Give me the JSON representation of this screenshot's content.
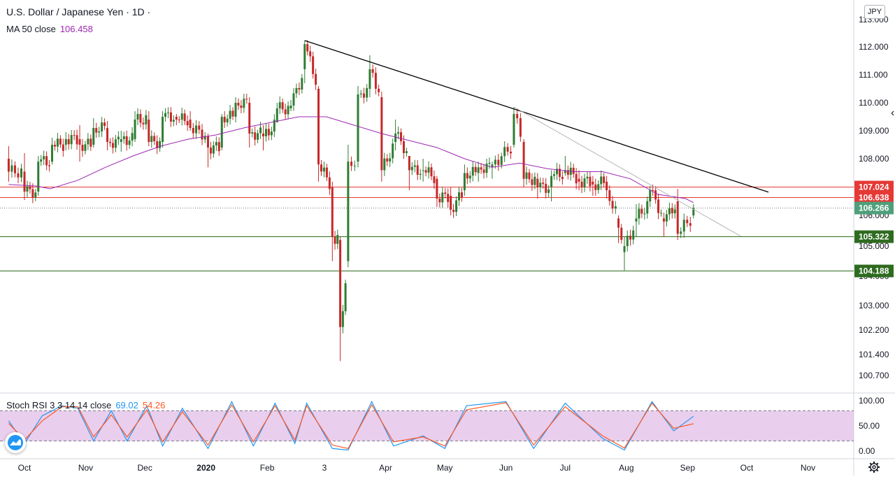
{
  "header": {
    "title": "U.S. Dollar / Japanese Yen · 1D ·",
    "ma_label": "MA 50 close",
    "ma_value": "106.458",
    "currency": "JPY"
  },
  "indicator": {
    "label": "Stoch RSI 3 3 14 14 close",
    "k_value": "69.02",
    "d_value": "54.26"
  },
  "colors": {
    "up": "#2e7d32",
    "down": "#c62828",
    "ma": "#9c27b0",
    "stoch_k": "#2196f3",
    "stoch_d": "#ff5722",
    "stoch_band": "#e1bee7",
    "resistance": "#e53935",
    "support": "#2e6b1f",
    "trendline": "#000000",
    "trendline_minor": "#b5b5b5",
    "last_price_bg": "#4f9f7a"
  },
  "icons": {
    "logo": "tradingview-logo-icon",
    "settings": "gear-icon",
    "scale_handle": "scroll-handle-icon"
  },
  "chart_data": [
    {
      "type": "candlestick",
      "title": "U.S. Dollar / Japanese Yen · 1D ·",
      "x_tick_labels": [
        "Oct",
        "Nov",
        "Dec",
        "2020",
        "Feb",
        "3",
        "Apr",
        "May",
        "Jun",
        "Jul",
        "Aug",
        "Sep",
        "Oct",
        "Nov"
      ],
      "y_tick_labels": [
        "113.000",
        "112.000",
        "111.000",
        "110.000",
        "109.000",
        "108.000",
        "107.000",
        "106.000",
        "105.000",
        "104.000",
        "103.000",
        "102.200",
        "101.400",
        "100.700"
      ],
      "ylim": [
        100.4,
        113.2
      ],
      "grid": false,
      "horizontal_levels": [
        {
          "value": 107.024,
          "label": "107.024",
          "role": "resistance"
        },
        {
          "value": 106.638,
          "label": "106.638",
          "role": "resistance"
        },
        {
          "value": 105.322,
          "label": "105.322",
          "role": "support"
        },
        {
          "value": 104.188,
          "label": "104.188",
          "role": "support"
        }
      ],
      "last_price": {
        "value": 106.266,
        "label": "106.266"
      },
      "trendlines": [
        {
          "from": {
            "date": "2020-02-20",
            "price": 112.23
          },
          "to": {
            "date": "2020-10-12",
            "price": 106.83
          },
          "style": "solid"
        },
        {
          "from": {
            "date": "2020-06-05",
            "price": 109.85
          },
          "to": {
            "date": "2020-09-28",
            "price": 105.32
          },
          "style": "thin"
        }
      ],
      "ma50": {
        "label": "MA 50 close",
        "value": "106.458",
        "points": [
          [
            "2019-09-23",
            107.1
          ],
          [
            "2019-10-07",
            107.05
          ],
          [
            "2019-10-14",
            106.95
          ],
          [
            "2019-10-28",
            107.25
          ],
          [
            "2019-11-11",
            107.7
          ],
          [
            "2019-11-25",
            108.1
          ],
          [
            "2019-12-09",
            108.45
          ],
          [
            "2019-12-23",
            108.7
          ],
          [
            "2020-01-06",
            108.85
          ],
          [
            "2020-01-20",
            109.1
          ],
          [
            "2020-02-03",
            109.3
          ],
          [
            "2020-02-17",
            109.5
          ],
          [
            "2020-03-02",
            109.5
          ],
          [
            "2020-03-16",
            109.2
          ],
          [
            "2020-03-30",
            108.9
          ],
          [
            "2020-04-13",
            108.65
          ],
          [
            "2020-04-27",
            108.4
          ],
          [
            "2020-05-11",
            108.0
          ],
          [
            "2020-05-25",
            107.7
          ],
          [
            "2020-06-08",
            107.85
          ],
          [
            "2020-06-22",
            107.65
          ],
          [
            "2020-07-06",
            107.55
          ],
          [
            "2020-07-20",
            107.55
          ],
          [
            "2020-08-03",
            107.3
          ],
          [
            "2020-08-17",
            106.75
          ],
          [
            "2020-08-31",
            106.6
          ],
          [
            "2020-09-04",
            106.458
          ]
        ]
      },
      "ohlc_monthly_path": [
        [
          "2019-09-23",
          108.0,
          108.45,
          107.2,
          107.55
        ],
        [
          "2019-10-01",
          107.55,
          108.2,
          106.55,
          106.85
        ],
        [
          "2019-10-08",
          106.85,
          108.1,
          106.7,
          107.9
        ],
        [
          "2019-10-15",
          107.9,
          108.75,
          107.8,
          108.5
        ],
        [
          "2019-10-22",
          108.5,
          108.95,
          108.3,
          108.7
        ],
        [
          "2019-10-29",
          108.7,
          109.2,
          107.9,
          108.5
        ],
        [
          "2019-11-05",
          108.5,
          109.45,
          108.4,
          109.1
        ],
        [
          "2019-11-12",
          109.1,
          109.35,
          108.3,
          108.6
        ],
        [
          "2019-11-19",
          108.6,
          109.0,
          108.25,
          108.7
        ],
        [
          "2019-11-26",
          108.7,
          109.7,
          108.6,
          109.4
        ],
        [
          "2019-12-03",
          109.4,
          109.7,
          108.45,
          108.6
        ],
        [
          "2019-12-10",
          108.6,
          109.7,
          108.4,
          109.5
        ],
        [
          "2019-12-17",
          109.5,
          109.6,
          109.2,
          109.4
        ],
        [
          "2019-12-24",
          109.4,
          109.7,
          109.0,
          109.1
        ],
        [
          "2020-01-02",
          108.8,
          108.9,
          107.7,
          108.4
        ],
        [
          "2020-01-09",
          108.4,
          109.6,
          108.3,
          109.5
        ],
        [
          "2020-01-16",
          109.5,
          110.2,
          109.3,
          110.0
        ],
        [
          "2020-01-23",
          110.0,
          110.2,
          108.4,
          108.9
        ],
        [
          "2020-01-30",
          108.9,
          109.2,
          108.3,
          108.8
        ],
        [
          "2020-02-06",
          109.3,
          110.0,
          109.6,
          109.8
        ],
        [
          "2020-02-13",
          109.8,
          110.1,
          109.7,
          109.9
        ],
        [
          "2020-02-20",
          111.2,
          112.23,
          110.7,
          112.1
        ],
        [
          "2020-02-27",
          110.5,
          110.6,
          107.2,
          107.8
        ],
        [
          "2020-03-05",
          107.0,
          107.2,
          104.5,
          105.3
        ],
        [
          "2020-03-09",
          105.2,
          105.3,
          101.18,
          102.3
        ],
        [
          "2020-03-13",
          104.5,
          108.5,
          104.3,
          107.9
        ],
        [
          "2020-03-18",
          107.9,
          110.6,
          107.7,
          110.3
        ],
        [
          "2020-03-24",
          110.5,
          111.7,
          110.2,
          111.2
        ],
        [
          "2020-03-30",
          110.2,
          110.4,
          107.2,
          107.6
        ],
        [
          "2020-04-06",
          108.6,
          109.4,
          108.3,
          108.9
        ],
        [
          "2020-04-13",
          108.1,
          108.1,
          106.9,
          107.6
        ],
        [
          "2020-04-20",
          107.6,
          108.0,
          107.2,
          107.6
        ],
        [
          "2020-04-27",
          107.3,
          107.4,
          106.3,
          106.6
        ],
        [
          "2020-05-04",
          106.7,
          107.0,
          106.0,
          106.2
        ],
        [
          "2020-05-11",
          106.9,
          107.8,
          106.7,
          107.5
        ],
        [
          "2020-05-18",
          107.5,
          107.9,
          107.2,
          107.7
        ],
        [
          "2020-05-25",
          107.7,
          107.9,
          107.3,
          107.8
        ],
        [
          "2020-06-05",
          108.5,
          109.85,
          108.4,
          109.6
        ],
        [
          "2020-06-10",
          108.6,
          108.7,
          107.0,
          107.3
        ],
        [
          "2020-06-17",
          107.3,
          107.5,
          106.6,
          107.0
        ],
        [
          "2020-06-24",
          107.0,
          107.6,
          106.5,
          107.4
        ],
        [
          "2020-07-01",
          107.5,
          108.1,
          107.4,
          107.6
        ],
        [
          "2020-07-08",
          107.3,
          107.6,
          106.9,
          107.2
        ],
        [
          "2020-07-15",
          107.2,
          107.4,
          106.7,
          107.1
        ],
        [
          "2020-07-22",
          107.2,
          107.4,
          106.6,
          106.9
        ],
        [
          "2020-07-28",
          105.9,
          106.0,
          105.1,
          105.6
        ],
        [
          "2020-07-31",
          104.8,
          105.3,
          104.19,
          105.0
        ],
        [
          "2020-08-06",
          105.8,
          106.4,
          105.3,
          105.9
        ],
        [
          "2020-08-13",
          106.5,
          107.05,
          106.3,
          106.9
        ],
        [
          "2020-08-20",
          105.9,
          106.1,
          105.3,
          105.8
        ],
        [
          "2020-08-27",
          106.5,
          106.95,
          105.2,
          105.4
        ],
        [
          "2020-09-04",
          106.0,
          106.4,
          105.9,
          106.266
        ]
      ]
    },
    {
      "type": "line",
      "title": "Stoch RSI 3 3 14 14 close",
      "y_tick_labels": [
        "100.00",
        "50.00",
        "0.00"
      ],
      "ylim": [
        -5,
        104
      ],
      "band": [
        20,
        80
      ],
      "series": [
        {
          "name": "K",
          "value": "69.02",
          "values": [
            [
              "2019-09-23",
              60
            ],
            [
              "2019-10-01",
              15
            ],
            [
              "2019-10-10",
              70
            ],
            [
              "2019-10-20",
              90
            ],
            [
              "2019-10-28",
              85
            ],
            [
              "2019-11-05",
              20
            ],
            [
              "2019-11-14",
              80
            ],
            [
              "2019-11-22",
              20
            ],
            [
              "2019-12-02",
              90
            ],
            [
              "2019-12-10",
              10
            ],
            [
              "2019-12-20",
              85
            ],
            [
              "2020-01-02",
              5
            ],
            [
              "2020-01-14",
              98
            ],
            [
              "2020-01-25",
              10
            ],
            [
              "2020-02-05",
              95
            ],
            [
              "2020-02-15",
              15
            ],
            [
              "2020-02-21",
              95
            ],
            [
              "2020-03-05",
              5
            ],
            [
              "2020-03-13",
              2
            ],
            [
              "2020-03-25",
              98
            ],
            [
              "2020-04-05",
              10
            ],
            [
              "2020-04-20",
              30
            ],
            [
              "2020-05-01",
              5
            ],
            [
              "2020-05-12",
              90
            ],
            [
              "2020-06-01",
              98
            ],
            [
              "2020-06-15",
              5
            ],
            [
              "2020-07-01",
              95
            ],
            [
              "2020-07-20",
              25
            ],
            [
              "2020-07-31",
              2
            ],
            [
              "2020-08-14",
              98
            ],
            [
              "2020-08-25",
              40
            ],
            [
              "2020-09-04",
              69.02
            ]
          ]
        },
        {
          "name": "D",
          "value": "54.26",
          "values": [
            [
              "2019-09-23",
              55
            ],
            [
              "2019-10-01",
              22
            ],
            [
              "2019-10-10",
              60
            ],
            [
              "2019-10-20",
              88
            ],
            [
              "2019-10-28",
              88
            ],
            [
              "2019-11-05",
              28
            ],
            [
              "2019-11-14",
              72
            ],
            [
              "2019-11-22",
              28
            ],
            [
              "2019-12-02",
              82
            ],
            [
              "2019-12-10",
              18
            ],
            [
              "2019-12-20",
              78
            ],
            [
              "2020-01-02",
              12
            ],
            [
              "2020-01-14",
              92
            ],
            [
              "2020-01-25",
              18
            ],
            [
              "2020-02-05",
              90
            ],
            [
              "2020-02-15",
              22
            ],
            [
              "2020-02-21",
              90
            ],
            [
              "2020-03-05",
              12
            ],
            [
              "2020-03-13",
              5
            ],
            [
              "2020-03-25",
              92
            ],
            [
              "2020-04-05",
              18
            ],
            [
              "2020-04-20",
              28
            ],
            [
              "2020-05-01",
              10
            ],
            [
              "2020-05-12",
              82
            ],
            [
              "2020-06-01",
              96
            ],
            [
              "2020-06-15",
              12
            ],
            [
              "2020-07-01",
              88
            ],
            [
              "2020-07-20",
              30
            ],
            [
              "2020-07-31",
              6
            ],
            [
              "2020-08-14",
              95
            ],
            [
              "2020-08-25",
              45
            ],
            [
              "2020-09-04",
              54.26
            ]
          ]
        }
      ]
    }
  ]
}
